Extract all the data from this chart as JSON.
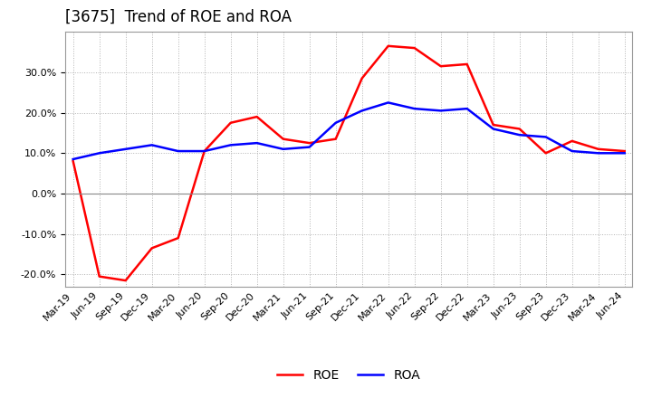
{
  "title": "[3675]  Trend of ROE and ROA",
  "x_labels": [
    "Mar-19",
    "Jun-19",
    "Sep-19",
    "Dec-19",
    "Mar-20",
    "Jun-20",
    "Sep-20",
    "Dec-20",
    "Mar-21",
    "Jun-21",
    "Sep-21",
    "Dec-21",
    "Mar-22",
    "Jun-22",
    "Sep-22",
    "Dec-22",
    "Mar-23",
    "Jun-23",
    "Sep-23",
    "Dec-23",
    "Mar-24",
    "Jun-24"
  ],
  "roe": [
    8.0,
    -20.5,
    -21.5,
    -13.5,
    -11.0,
    10.5,
    17.5,
    19.0,
    13.5,
    12.5,
    13.5,
    28.5,
    36.5,
    36.0,
    31.5,
    32.0,
    17.0,
    16.0,
    10.0,
    13.0,
    11.0,
    10.5
  ],
  "roa": [
    8.5,
    10.0,
    11.0,
    12.0,
    10.5,
    10.5,
    12.0,
    12.5,
    11.0,
    11.5,
    17.5,
    20.5,
    22.5,
    21.0,
    20.5,
    21.0,
    16.0,
    14.5,
    14.0,
    10.5,
    10.0,
    10.0
  ],
  "roe_color": "#FF0000",
  "roa_color": "#0000FF",
  "ylim": [
    -23,
    40
  ],
  "yticks": [
    -20.0,
    -10.0,
    0.0,
    10.0,
    20.0,
    30.0
  ],
  "background_color": "#FFFFFF",
  "plot_bg_color": "#FFFFFF",
  "grid_color": "#AAAAAA",
  "title_fontsize": 12,
  "tick_fontsize": 8,
  "legend_fontsize": 10
}
